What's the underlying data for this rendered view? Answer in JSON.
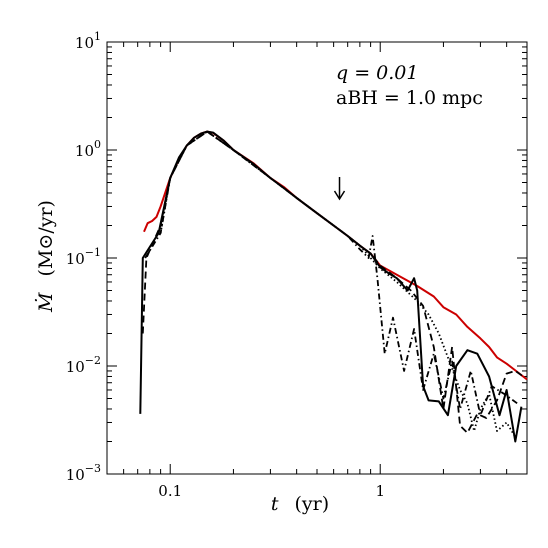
{
  "chart_data": {
    "type": "line",
    "x_scale": "log",
    "y_scale": "log",
    "xlim": [
      0.05,
      5.0
    ],
    "ylim": [
      0.001,
      10
    ],
    "grid": false,
    "x_ticks": [
      {
        "value": 0.1,
        "label": "0.1"
      },
      {
        "value": 1,
        "label": "1"
      }
    ],
    "y_ticks": [
      {
        "value": 0.001,
        "base": "10",
        "exp": "−3"
      },
      {
        "value": 0.01,
        "base": "10",
        "exp": "−2"
      },
      {
        "value": 0.1,
        "base": "10",
        "exp": "−1"
      },
      {
        "value": 1,
        "base": "10",
        "exp": "0"
      },
      {
        "value": 10,
        "base": "10",
        "exp": "1"
      }
    ],
    "xlabel": {
      "symbol": "t",
      "unit": "(yr)"
    },
    "ylabel": {
      "symbol": "Ṁ",
      "unit": "(M⊙/yr)"
    },
    "annotations": {
      "line1": "q = 0.01",
      "line2": "aBH = 1.0 mpc",
      "arrow_x": 0.64
    },
    "series": [
      {
        "color": "#cc0000",
        "dash": "solid",
        "points": [
          [
            0.075,
            0.175
          ],
          [
            0.078,
            0.21
          ],
          [
            0.082,
            0.22
          ],
          [
            0.086,
            0.24
          ],
          [
            0.09,
            0.3
          ],
          [
            0.1,
            0.55
          ],
          [
            0.11,
            0.82
          ],
          [
            0.12,
            1.1
          ],
          [
            0.13,
            1.3
          ],
          [
            0.14,
            1.42
          ],
          [
            0.15,
            1.48
          ],
          [
            0.16,
            1.44
          ],
          [
            0.18,
            1.22
          ],
          [
            0.2,
            1.0
          ],
          [
            0.25,
            0.75
          ],
          [
            0.3,
            0.55
          ],
          [
            0.35,
            0.45
          ],
          [
            0.4,
            0.36
          ],
          [
            0.5,
            0.26
          ],
          [
            0.6,
            0.2
          ],
          [
            0.7,
            0.16
          ],
          [
            0.8,
            0.13
          ],
          [
            0.9,
            0.11
          ],
          [
            1.0,
            0.085
          ],
          [
            1.2,
            0.07
          ],
          [
            1.5,
            0.055
          ],
          [
            1.8,
            0.044
          ],
          [
            2.0,
            0.035
          ],
          [
            2.3,
            0.03
          ],
          [
            2.6,
            0.023
          ],
          [
            3.0,
            0.018
          ],
          [
            3.3,
            0.015
          ],
          [
            3.6,
            0.012
          ],
          [
            4.0,
            0.0105
          ],
          [
            4.5,
            0.0088
          ],
          [
            5.0,
            0.0075
          ]
        ]
      },
      {
        "color": "#000000",
        "dash": "solid",
        "points": [
          [
            0.072,
            0.0036
          ],
          [
            0.074,
            0.1
          ],
          [
            0.088,
            0.17
          ],
          [
            0.1,
            0.55
          ],
          [
            0.11,
            0.85
          ],
          [
            0.12,
            1.1
          ],
          [
            0.13,
            1.3
          ],
          [
            0.14,
            1.42
          ],
          [
            0.15,
            1.48
          ],
          [
            0.16,
            1.45
          ],
          [
            0.18,
            1.22
          ],
          [
            0.2,
            1.0
          ],
          [
            0.25,
            0.74
          ],
          [
            0.3,
            0.55
          ],
          [
            0.35,
            0.44
          ],
          [
            0.4,
            0.36
          ],
          [
            0.5,
            0.26
          ],
          [
            0.6,
            0.2
          ],
          [
            0.7,
            0.16
          ],
          [
            0.8,
            0.13
          ],
          [
            0.9,
            0.11
          ],
          [
            1.0,
            0.082
          ],
          [
            1.1,
            0.072
          ],
          [
            1.2,
            0.065
          ],
          [
            1.35,
            0.05
          ],
          [
            1.45,
            0.065
          ],
          [
            1.5,
            0.05
          ],
          [
            1.6,
            0.0065
          ],
          [
            1.7,
            0.0048
          ],
          [
            1.9,
            0.0047
          ],
          [
            2.1,
            0.0035
          ],
          [
            2.3,
            0.01
          ],
          [
            2.6,
            0.014
          ],
          [
            2.9,
            0.013
          ],
          [
            3.3,
            0.008
          ],
          [
            3.7,
            0.0035
          ],
          [
            4.0,
            0.006
          ],
          [
            4.4,
            0.002
          ],
          [
            4.7,
            0.0042
          ]
        ]
      },
      {
        "color": "#000000",
        "dash": "dashed",
        "points": [
          [
            0.074,
            0.02
          ],
          [
            0.077,
            0.1
          ],
          [
            0.09,
            0.2
          ],
          [
            0.1,
            0.55
          ],
          [
            0.12,
            1.1
          ],
          [
            0.15,
            1.48
          ],
          [
            0.2,
            1.0
          ],
          [
            0.3,
            0.55
          ],
          [
            0.4,
            0.36
          ],
          [
            0.5,
            0.26
          ],
          [
            0.6,
            0.2
          ],
          [
            0.7,
            0.16
          ],
          [
            0.8,
            0.13
          ],
          [
            0.9,
            0.11
          ],
          [
            1.0,
            0.085
          ],
          [
            1.2,
            0.065
          ],
          [
            1.4,
            0.05
          ],
          [
            1.6,
            0.036
          ],
          [
            1.8,
            0.015
          ],
          [
            2.0,
            0.004
          ],
          [
            2.2,
            0.015
          ],
          [
            2.4,
            0.0028
          ],
          [
            2.6,
            0.0024
          ],
          [
            2.9,
            0.0036
          ],
          [
            3.2,
            0.0033
          ],
          [
            3.6,
            0.0048
          ],
          [
            4.0,
            0.0085
          ],
          [
            4.4,
            0.009
          ],
          [
            4.8,
            0.008
          ]
        ]
      },
      {
        "color": "#000000",
        "dash": "dashdot",
        "points": [
          [
            0.076,
            0.1
          ],
          [
            0.09,
            0.17
          ],
          [
            0.1,
            0.55
          ],
          [
            0.12,
            1.1
          ],
          [
            0.15,
            1.48
          ],
          [
            0.2,
            1.0
          ],
          [
            0.3,
            0.55
          ],
          [
            0.4,
            0.36
          ],
          [
            0.5,
            0.26
          ],
          [
            0.6,
            0.2
          ],
          [
            0.7,
            0.16
          ],
          [
            0.8,
            0.12
          ],
          [
            0.88,
            0.1
          ],
          [
            0.92,
            0.16
          ],
          [
            0.97,
            0.065
          ],
          [
            1.05,
            0.013
          ],
          [
            1.15,
            0.028
          ],
          [
            1.3,
            0.009
          ],
          [
            1.45,
            0.022
          ],
          [
            1.6,
            0.006
          ],
          [
            1.8,
            0.013
          ],
          [
            2.0,
            0.005
          ],
          [
            2.2,
            0.011
          ],
          [
            2.4,
            0.004
          ],
          [
            2.7,
            0.009
          ],
          [
            3.0,
            0.0035
          ],
          [
            3.4,
            0.0065
          ],
          [
            3.9,
            0.0055
          ],
          [
            4.5,
            0.0045
          ]
        ]
      },
      {
        "color": "#000000",
        "dash": "dotted",
        "points": [
          [
            0.09,
            0.17
          ],
          [
            0.1,
            0.55
          ],
          [
            0.12,
            1.1
          ],
          [
            0.15,
            1.48
          ],
          [
            0.2,
            1.0
          ],
          [
            0.3,
            0.55
          ],
          [
            0.4,
            0.36
          ],
          [
            0.5,
            0.26
          ],
          [
            0.6,
            0.2
          ],
          [
            0.7,
            0.16
          ],
          [
            0.8,
            0.13
          ],
          [
            0.9,
            0.1
          ],
          [
            1.0,
            0.08
          ],
          [
            1.2,
            0.06
          ],
          [
            1.5,
            0.04
          ],
          [
            1.7,
            0.03
          ],
          [
            1.9,
            0.02
          ],
          [
            2.1,
            0.012
          ],
          [
            2.4,
            0.006
          ],
          [
            2.6,
            0.0045
          ],
          [
            2.8,
            0.0025
          ],
          [
            3.0,
            0.004
          ],
          [
            3.3,
            0.0055
          ],
          [
            3.6,
            0.0025
          ],
          [
            4.0,
            0.003
          ],
          [
            4.4,
            0.0022
          ]
        ]
      }
    ]
  }
}
